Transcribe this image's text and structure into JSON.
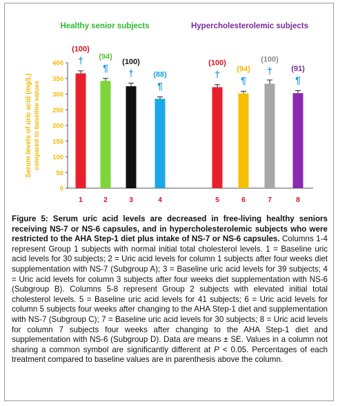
{
  "chart_data": {
    "type": "bar",
    "group_labels": [
      {
        "text": "Healthy senior subjects",
        "color": "#2eb82e"
      },
      {
        "text": "Hypercholesterolemic  subjects",
        "color": "#7a2a9a"
      }
    ],
    "ylabel_line1": "Serum levels of uric acid (mg/L)",
    "ylabel_line2": "compared to baseline values",
    "ylabel_color": "#f5b800",
    "ylim": [
      0,
      400
    ],
    "y_ticks": [
      "0",
      "50",
      "100",
      "150",
      "200",
      "250",
      "300",
      "350",
      "400"
    ],
    "categories": [
      "1",
      "2",
      "3",
      "4",
      "5",
      "6",
      "7",
      "8"
    ],
    "values": [
      366,
      342,
      325,
      285,
      322,
      302,
      333,
      303
    ],
    "errors": [
      8,
      8,
      10,
      6,
      8,
      7,
      12,
      8
    ],
    "bar_colors": [
      "#e8202a",
      "#7dd63a",
      "#111111",
      "#1aa8e8",
      "#e8202a",
      "#f5c000",
      "#a8a8a8",
      "#8a2ab0"
    ],
    "percent_labels": [
      "(100)",
      "(94)",
      "(100)",
      "(88)",
      "(100)",
      "(94)",
      "(100)",
      "(91)"
    ],
    "percent_colors": [
      "#d8141c",
      "#5cc030",
      "#111111",
      "#1aa0e0",
      "#d8141c",
      "#f5b800",
      "#8a8a8a",
      "#7a2a9a"
    ],
    "symbols": [
      "†",
      "¶",
      "†",
      "¶",
      "†",
      "¶",
      "†",
      "¶"
    ],
    "symbol_color": "#1ea0e0",
    "category_label_color": "#d8141c"
  },
  "caption": {
    "title": "Figure 5: Serum uric acid levels are decreased in free-living healthy seniors receiving NS-7 or NS-6 capsules, and in hypercholesterolemic subjects who were restricted to the AHA Step-1 diet plus intake of NS-7 or NS-6 capsules.",
    "body_a": " Columns 1-4 represent Group 1 subjects with normal initial total cholesterol levels. 1 = Baseline uric acid levels for 30 subjects; 2 = Uric acid levels for column 1 subjects after four weeks diet supplementation with NS-7 (Subgroup A); 3 = Baseline uric acid levels for 39 subjects; 4 = Uric acid levels for column 3 subjects after four weeks diet supplementation with NS-6 (Subgroup B). Columns 5-8 represent Group 2 subjects with elevated initial total cholesterol levels. 5 = Baseline uric acid levels for 41 subjects; 6 = Uric acid levels for column 5 subjects four weeks after changing to the AHA Step-1 diet and supplementation with NS-7 (Subgroup C); 7 = Baseline uric acid levels for 30 subjects; 8 = Uric acid levels for column 7 subjects four weeks after changing to the AHA Step-1 diet and supplementation with NS-6 (Subgroup D). Data are means ± SE. Values in a column not sharing a common symbol are significantly different at ",
    "p_symbol": "P",
    "body_b": " < 0.05. Percentages of each treatment compared to baseline values are in parenthesis above the column."
  }
}
